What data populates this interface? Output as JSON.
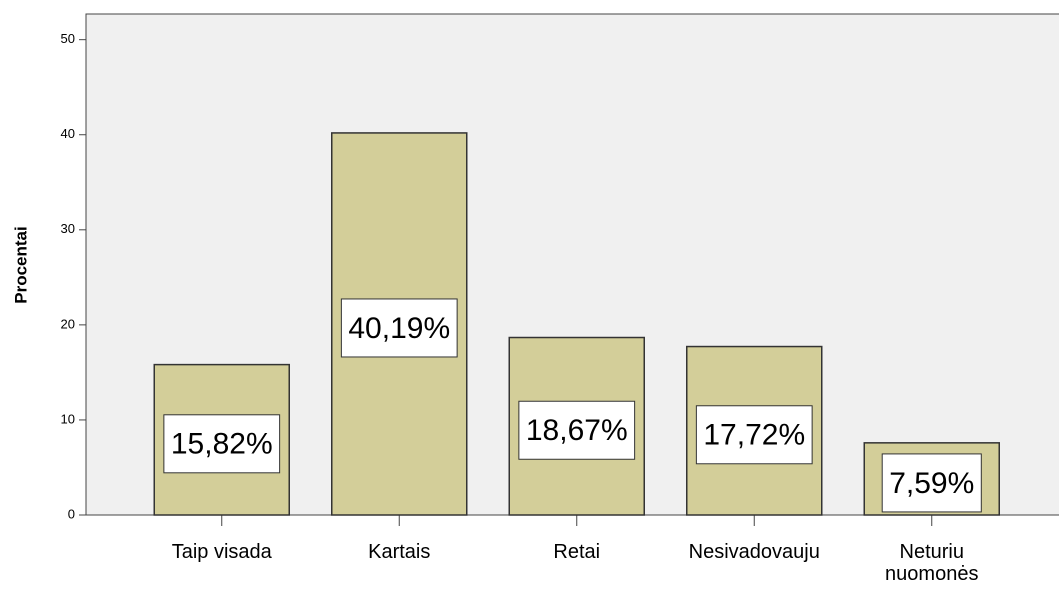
{
  "chart_data": {
    "type": "bar",
    "y_label": "Procentai",
    "categories": [
      "Taip visada",
      "Kartais",
      "Retai",
      "Nesivadovauju",
      "Neturiu nuomonės"
    ],
    "values": [
      15.82,
      40.19,
      18.67,
      17.72,
      7.59
    ],
    "value_labels": [
      "15,82%",
      "40,19%",
      "18,67%",
      "17,72%",
      "7,59%"
    ],
    "color": "#d3ce99",
    "ylim": [
      0,
      52.7
    ],
    "yticks": [
      0,
      10,
      20,
      30,
      40,
      50
    ]
  }
}
